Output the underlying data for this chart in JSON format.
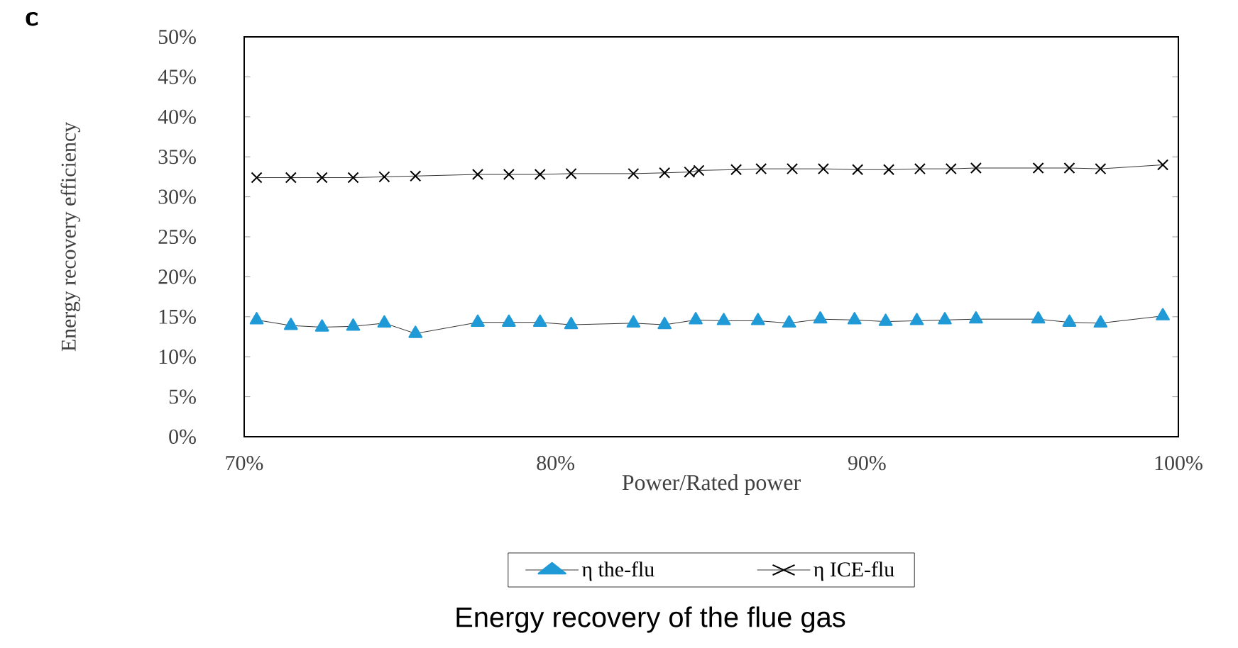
{
  "chart_data": {
    "type": "line",
    "title": "Energy recovery of the flue gas",
    "xlabel": "Power/Rated power",
    "ylabel": "Energy recovery efficiency",
    "annotations": [
      "c"
    ],
    "xlim": [
      70,
      100
    ],
    "ylim": [
      0,
      50
    ],
    "xticks": [
      {
        "value": 70,
        "label": "70%"
      },
      {
        "value": 80,
        "label": "80%"
      },
      {
        "value": 90,
        "label": "90%"
      },
      {
        "value": 100,
        "label": "100%"
      }
    ],
    "yticks": [
      {
        "value": 0,
        "label": "0%"
      },
      {
        "value": 5,
        "label": "5%"
      },
      {
        "value": 10,
        "label": "10%"
      },
      {
        "value": 15,
        "label": "15%"
      },
      {
        "value": 20,
        "label": "20%"
      },
      {
        "value": 25,
        "label": "25%"
      },
      {
        "value": 30,
        "label": "30%"
      },
      {
        "value": 35,
        "label": "35%"
      },
      {
        "value": 40,
        "label": "40%"
      },
      {
        "value": 45,
        "label": "45%"
      },
      {
        "value": 50,
        "label": "50%"
      }
    ],
    "grid": false,
    "legend": "bottom",
    "line_style": "solid",
    "series": [
      {
        "name": "η the-flu",
        "color": "#1f9ad6",
        "marker": "triangle",
        "x": [
          70.4,
          71.5,
          72.5,
          73.5,
          74.5,
          75.5,
          77.5,
          78.5,
          79.5,
          80.5,
          82.5,
          83.5,
          84.5,
          85.4,
          86.5,
          87.5,
          88.5,
          89.6,
          90.6,
          91.6,
          92.5,
          93.5,
          95.5,
          96.5,
          97.5,
          99.5
        ],
        "values": [
          14.6,
          13.9,
          13.7,
          13.8,
          14.2,
          12.9,
          14.3,
          14.3,
          14.3,
          14.0,
          14.2,
          14.0,
          14.6,
          14.5,
          14.5,
          14.2,
          14.7,
          14.6,
          14.4,
          14.5,
          14.6,
          14.7,
          14.7,
          14.3,
          14.2,
          15.1
        ]
      },
      {
        "name": "η ICE-flu",
        "color": "#000000",
        "marker": "cross",
        "x": [
          70.4,
          71.5,
          72.5,
          73.5,
          74.5,
          75.5,
          77.5,
          78.5,
          79.5,
          80.5,
          82.5,
          83.5,
          84.3,
          84.6,
          85.8,
          86.6,
          87.6,
          88.6,
          89.7,
          90.7,
          91.7,
          92.7,
          93.5,
          95.5,
          96.5,
          97.5,
          99.5
        ],
        "values": [
          32.4,
          32.4,
          32.4,
          32.4,
          32.5,
          32.6,
          32.8,
          32.8,
          32.8,
          32.9,
          32.9,
          33.0,
          33.1,
          33.3,
          33.4,
          33.5,
          33.5,
          33.5,
          33.4,
          33.4,
          33.5,
          33.5,
          33.6,
          33.6,
          33.6,
          33.5,
          34.0
        ]
      }
    ]
  }
}
